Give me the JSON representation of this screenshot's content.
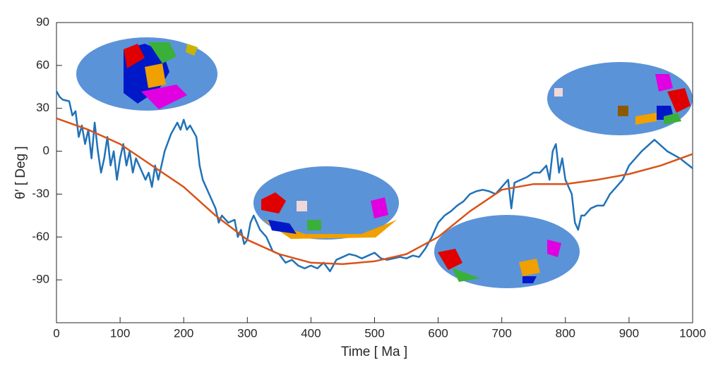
{
  "chart_data": {
    "type": "line",
    "xlabel": "Time [ Ma ]",
    "ylabel": "θ′ [ Deg ]",
    "xlim": [
      0,
      1000
    ],
    "xticks": [
      0,
      100,
      200,
      300,
      400,
      500,
      600,
      700,
      800,
      900,
      1000
    ],
    "ylim": [
      -120,
      90
    ],
    "yticks": [
      -90,
      -60,
      -30,
      0,
      30,
      60,
      90
    ],
    "grid": false,
    "series": [
      {
        "name": "blue",
        "color": "#2072b8",
        "x": [
          0,
          5,
          10,
          20,
          25,
          30,
          35,
          40,
          45,
          50,
          55,
          60,
          65,
          70,
          75,
          80,
          85,
          90,
          95,
          100,
          105,
          110,
          115,
          120,
          125,
          130,
          140,
          145,
          150,
          155,
          160,
          170,
          180,
          190,
          195,
          200,
          205,
          210,
          220,
          225,
          230,
          240,
          250,
          255,
          260,
          270,
          280,
          285,
          290,
          295,
          300,
          305,
          310,
          320,
          330,
          340,
          350,
          360,
          370,
          380,
          390,
          400,
          410,
          420,
          430,
          440,
          450,
          460,
          470,
          480,
          490,
          500,
          510,
          520,
          530,
          540,
          550,
          560,
          570,
          580,
          590,
          600,
          610,
          620,
          630,
          640,
          650,
          660,
          670,
          680,
          690,
          700,
          710,
          715,
          720,
          730,
          740,
          750,
          760,
          770,
          775,
          780,
          785,
          790,
          795,
          800,
          805,
          810,
          815,
          820,
          825,
          830,
          840,
          850,
          860,
          870,
          880,
          890,
          900,
          920,
          940,
          960,
          980,
          1000
        ],
        "values": [
          42,
          38,
          36,
          35,
          25,
          28,
          10,
          18,
          5,
          15,
          -5,
          20,
          0,
          -15,
          -5,
          10,
          -10,
          0,
          -20,
          -5,
          5,
          -10,
          0,
          -15,
          -5,
          -10,
          -20,
          -15,
          -25,
          -10,
          -20,
          0,
          12,
          20,
          15,
          22,
          15,
          18,
          10,
          -10,
          -20,
          -30,
          -40,
          -50,
          -45,
          -50,
          -48,
          -60,
          -55,
          -65,
          -62,
          -50,
          -45,
          -55,
          -60,
          -70,
          -72,
          -78,
          -76,
          -80,
          -82,
          -80,
          -82,
          -78,
          -84,
          -76,
          -74,
          -72,
          -73,
          -75,
          -73,
          -71,
          -75,
          -76,
          -75,
          -74,
          -75,
          -73,
          -74,
          -68,
          -60,
          -50,
          -45,
          -42,
          -38,
          -35,
          -30,
          -28,
          -27,
          -28,
          -30,
          -25,
          -20,
          -40,
          -22,
          -20,
          -18,
          -15,
          -15,
          -10,
          -20,
          0,
          5,
          -15,
          -5,
          -20,
          -25,
          -30,
          -50,
          -55,
          -45,
          -45,
          -40,
          -38,
          -38,
          -30,
          -25,
          -20,
          -10,
          0,
          8,
          0,
          -5,
          -12
        ]
      },
      {
        "name": "orange",
        "color": "#d95319",
        "x": [
          0,
          50,
          100,
          150,
          200,
          250,
          300,
          350,
          400,
          450,
          500,
          550,
          600,
          650,
          700,
          750,
          800,
          850,
          900,
          950,
          1000
        ],
        "values": [
          23,
          15,
          5,
          -10,
          -25,
          -45,
          -62,
          -72,
          -78,
          -79,
          -77,
          -72,
          -60,
          -42,
          -27,
          -23,
          -23,
          -20,
          -16,
          -10,
          -2
        ]
      }
    ]
  }
}
